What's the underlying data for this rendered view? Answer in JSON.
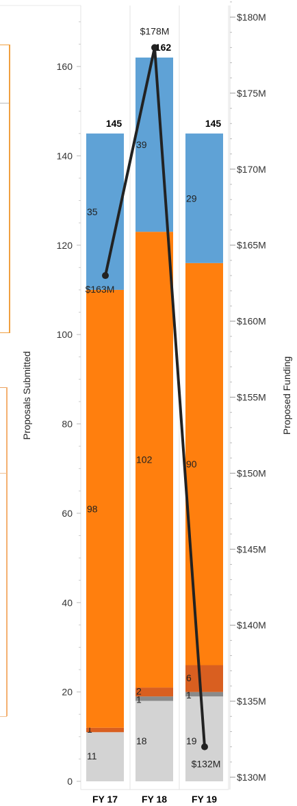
{
  "chart_data": {
    "type": "bar",
    "stacked": true,
    "categories": [
      "FY 17",
      "FY 18",
      "FY 19"
    ],
    "series": [
      {
        "values": [
          11,
          18,
          19
        ],
        "color": "#d3d3d3"
      },
      {
        "values": [
          0,
          1,
          1
        ],
        "color": "#8a8a8a"
      },
      {
        "values": [
          1,
          2,
          6
        ],
        "color": "#d95f20"
      },
      {
        "values": [
          98,
          102,
          90
        ],
        "color": "#ff7f0e"
      },
      {
        "values": [
          35,
          39,
          29
        ],
        "color": "#5fa2d6"
      }
    ],
    "segment_labels": [
      [
        "11",
        "",
        "1",
        "98",
        "35"
      ],
      [
        "18",
        "1",
        "2",
        "102",
        "39"
      ],
      [
        "19",
        "1",
        "6",
        "90",
        "29"
      ]
    ],
    "totals": [
      145,
      162,
      145
    ],
    "total_labels": [
      "145",
      "162",
      "145"
    ],
    "line": {
      "values": [
        163,
        178,
        132
      ],
      "labels": [
        "$163M",
        "$178M",
        "$132M"
      ],
      "color": "#222222"
    },
    "ylabel": "Proposals Submitted",
    "ylim": [
      0,
      175
    ],
    "yticks": [
      0,
      20,
      40,
      60,
      80,
      100,
      120,
      140,
      160
    ],
    "y2label": "Proposed Funding",
    "y2lim": [
      130,
      181
    ],
    "y2ticks": [
      130,
      135,
      140,
      145,
      150,
      155,
      160,
      165,
      170,
      175,
      180
    ],
    "y2tick_labels": [
      "$130M",
      "$135M",
      "$140M",
      "$145M",
      "$150M",
      "$155M",
      "$160M",
      "$165M",
      "$170M",
      "$175M",
      "$180M"
    ],
    "grid": false
  }
}
